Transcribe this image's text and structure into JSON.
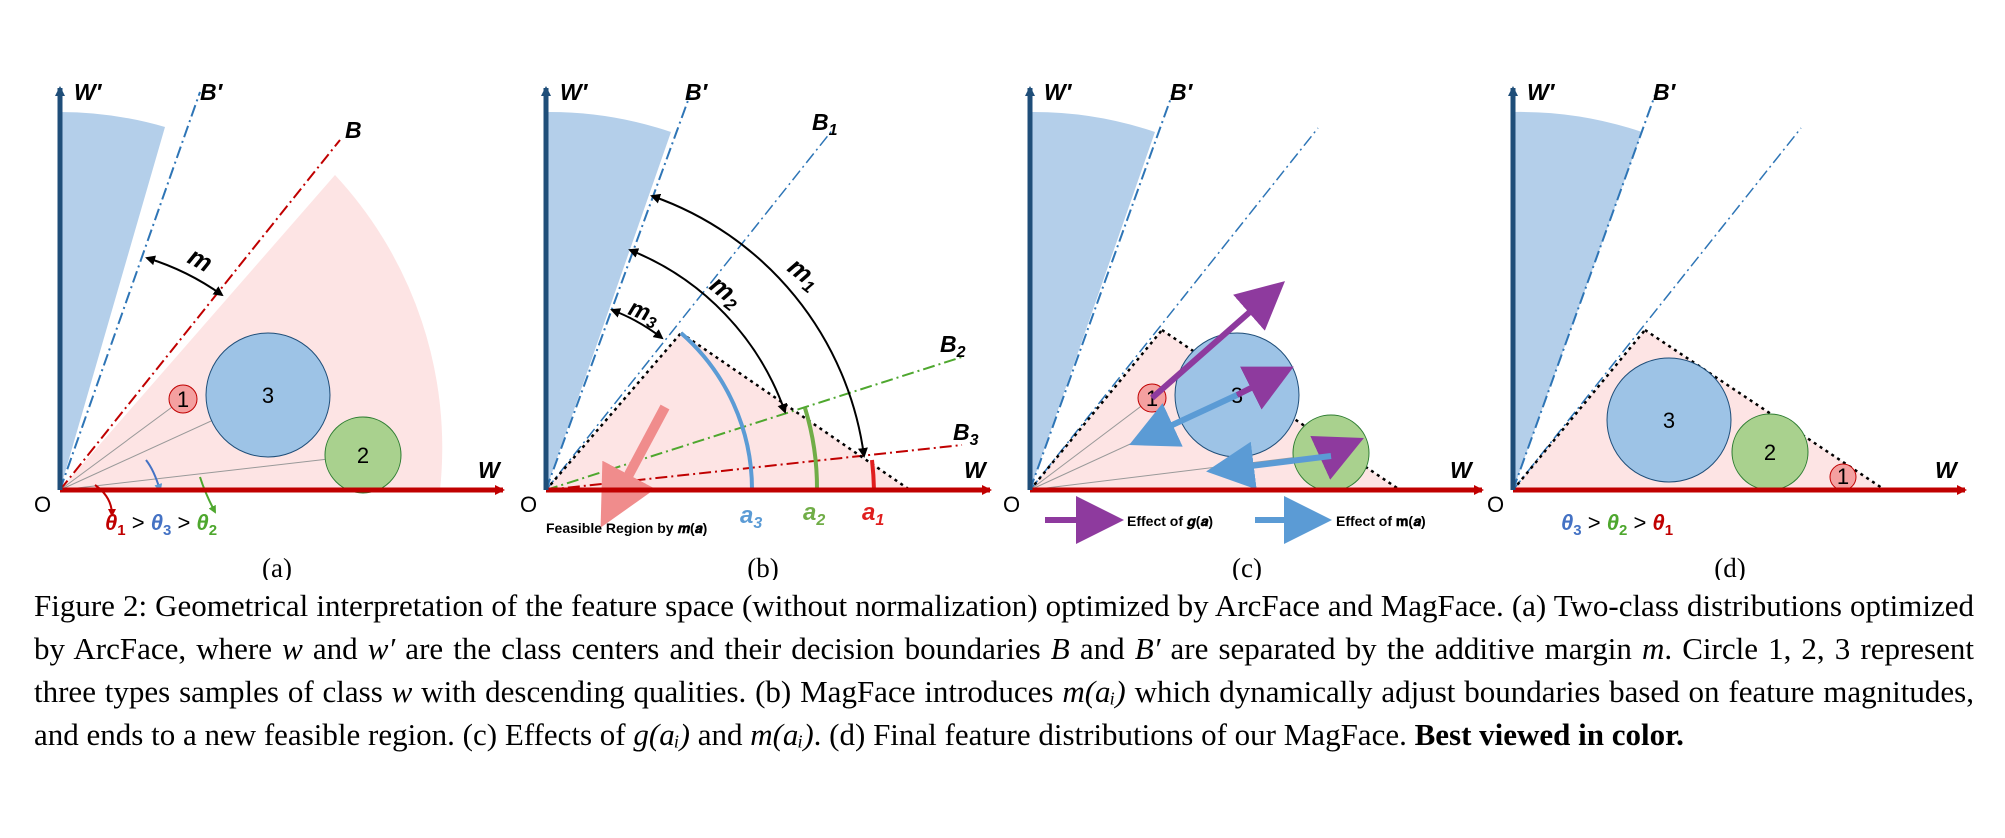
{
  "axes": {
    "w": "W",
    "w_prime": "W′",
    "b": "B",
    "b_prime": "B′",
    "origin": "O",
    "b1": "B",
    "b2": "B",
    "b3": "B",
    "b1_sub": "1",
    "b2_sub": "2",
    "b3_sub": "3"
  },
  "panel_a": {
    "margin": "m",
    "circles": [
      "1",
      "3",
      "2"
    ],
    "ineq": {
      "t1": "θ",
      "t1s": "1",
      "op1": " > ",
      "t3": "θ",
      "t3s": "3",
      "op2": " > ",
      "t2": "θ",
      "t2s": "2"
    },
    "sublabel": "(a)"
  },
  "panel_b": {
    "m1": "m",
    "m1s": "1",
    "m2": "m",
    "m2s": "2",
    "m3": "m",
    "m3s": "3",
    "feasible": "Feasible Region by 𝒎(𝒂)",
    "a3": "a",
    "a3s": "3",
    "a2": "a",
    "a2s": "2",
    "a1": "a",
    "a1s": "1",
    "sublabel": "(b)"
  },
  "panel_c": {
    "circles": [
      "1",
      "3",
      "2"
    ],
    "effect_g": "Effect of 𝒈(𝒂)",
    "effect_m": "Effect of 𝐦(𝒂)",
    "sublabel": "(c)"
  },
  "panel_d": {
    "circles": [
      "3",
      "2",
      "1"
    ],
    "ineq": {
      "t3": "θ",
      "t3s": "3",
      "op1": " > ",
      "t2": "θ",
      "t2s": "2",
      "op2": " > ",
      "t1": "θ",
      "t1s": "1"
    },
    "sublabel": "(d)"
  },
  "caption": {
    "p1": "Figure 2:  Geometrical interpretation of the feature space (without normalization) optimized by ArcFace and MagFace.  (a) Two-class distributions optimized by ArcFace, where ",
    "w": "w",
    "p2": " and ",
    "w_prime": "w′",
    "p3": " are the class centers and their decision boundaries ",
    "b": "B",
    "p4": " and ",
    "b_prime": "B′",
    "p5": " are separated by the additive margin ",
    "m": "m",
    "p6": ". Circle 1, 2, 3 represent three types samples of class ",
    "w2": "w",
    "p7": " with descending qualities. (b) MagFace introduces ",
    "mai": "m(aᵢ)",
    "p8": " which dynamically adjust boundaries based on feature magnitudes, and ends to a new feasible region. (c) Effects of ",
    "gai": "g(aᵢ)",
    "p9": " and ",
    "mai2": "m(aᵢ)",
    "p10": ". (d) Final feature distributions of our MagFace. ",
    "bold": "Best viewed in color."
  },
  "colors": {
    "axis_red": "#c00000",
    "axis_blue": "#1f4e79",
    "wedge_blue": "#b4cfea",
    "region_pink": "#fde4e4",
    "circle_blue": "#9dc3e6",
    "circle_green": "#a9d18e",
    "circle_red": "#f4a0a0",
    "purple": "#8e3a9e",
    "arrow_blue": "#5b9bd5",
    "green": "#4ea72e",
    "blue_arc": "#5b9bd5"
  }
}
